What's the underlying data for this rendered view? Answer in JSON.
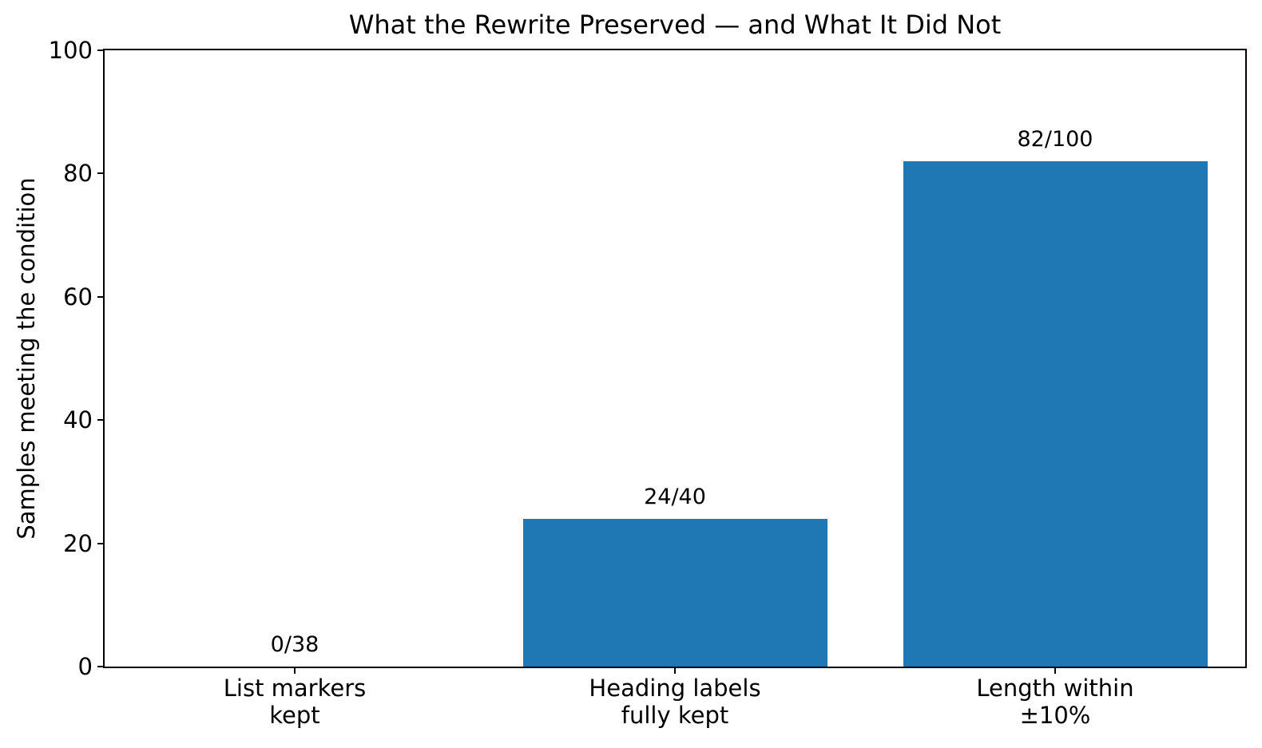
{
  "chart_data": {
    "type": "bar",
    "title": "What the Rewrite Preserved — and What It Did Not",
    "xlabel": "",
    "ylabel": "Samples meeting the condition",
    "categories": [
      "List markers\nkept",
      "Heading labels\nfully kept",
      "Length within\n±10%"
    ],
    "values": [
      0,
      24,
      82
    ],
    "bar_labels": [
      "0/38",
      "24/40",
      "82/100"
    ],
    "ylim": [
      0,
      100
    ],
    "yticks": [
      0,
      20,
      40,
      60,
      80,
      100
    ],
    "bar_color": "#1f77b4",
    "background_color": "#ffffff",
    "grid": false,
    "legend": "none",
    "bar_width_fraction": 0.8
  }
}
